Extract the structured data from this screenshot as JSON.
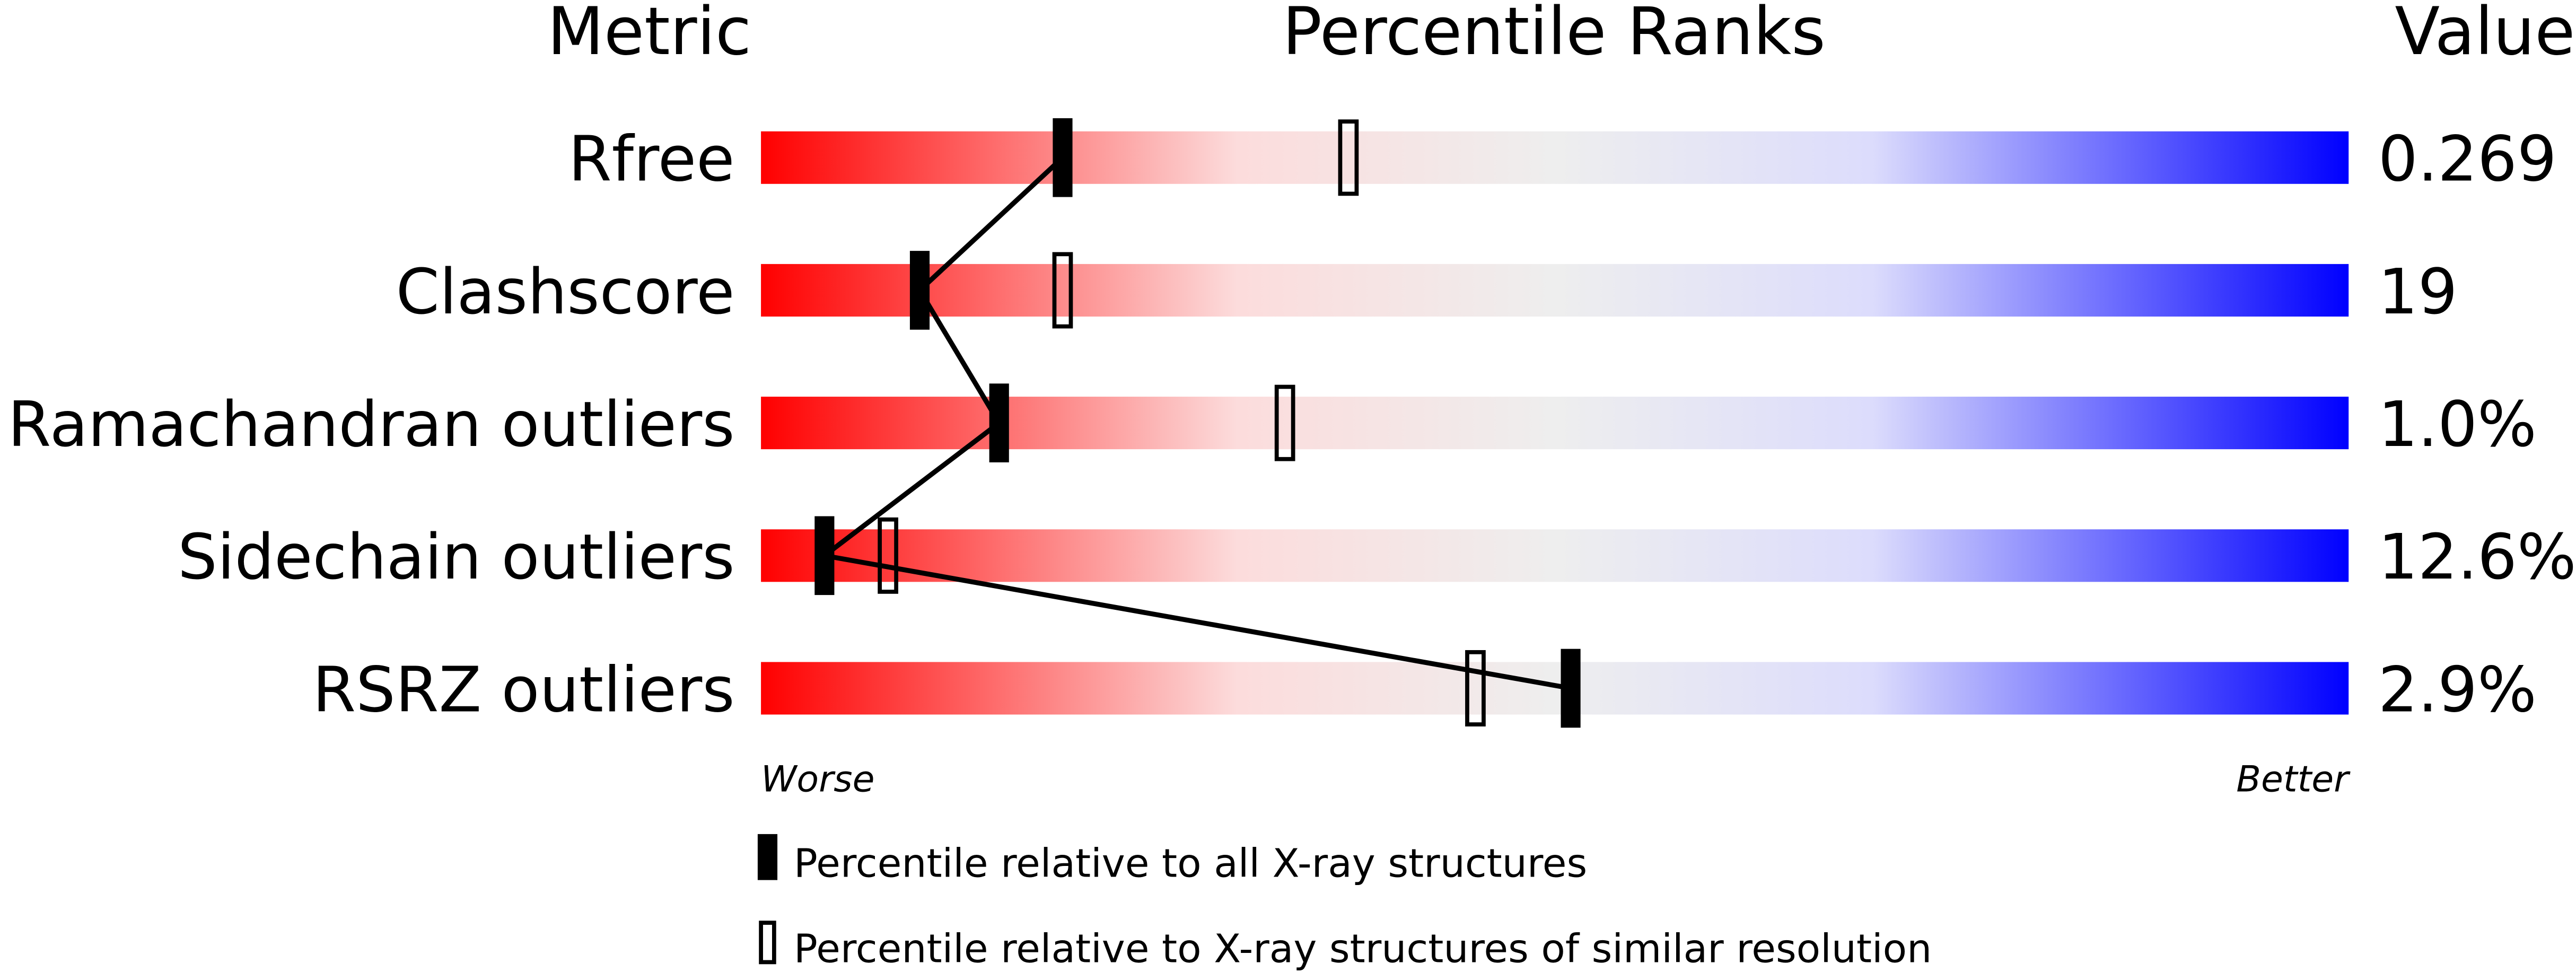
{
  "chart_data": {
    "type": "bar",
    "headers": {
      "metric": "Metric",
      "percentile": "Percentile Ranks",
      "value": "Value"
    },
    "metrics": [
      {
        "name": "Rfree",
        "value": "0.269",
        "percentile_all": 19,
        "percentile_similar": 37
      },
      {
        "name": "Clashscore",
        "value": "19",
        "percentile_all": 10,
        "percentile_similar": 19
      },
      {
        "name": "Ramachandran outliers",
        "value": "1.0%",
        "percentile_all": 15,
        "percentile_similar": 33
      },
      {
        "name": "Sidechain outliers",
        "value": "12.6%",
        "percentile_all": 4,
        "percentile_similar": 8
      },
      {
        "name": "RSRZ outliers",
        "value": "2.9%",
        "percentile_all": 51,
        "percentile_similar": 45
      }
    ],
    "xlim": [
      0,
      100
    ],
    "axis_left_label": "Worse",
    "axis_right_label": "Better",
    "legend": {
      "all": "Percentile relative to all X-ray structures",
      "similar": "Percentile relative to X-ray structures of similar resolution"
    },
    "gradient_colors": [
      "#ff0000",
      "#fcdcdc",
      "#eeeeee",
      "#dcdcfc",
      "#0000ff"
    ]
  }
}
